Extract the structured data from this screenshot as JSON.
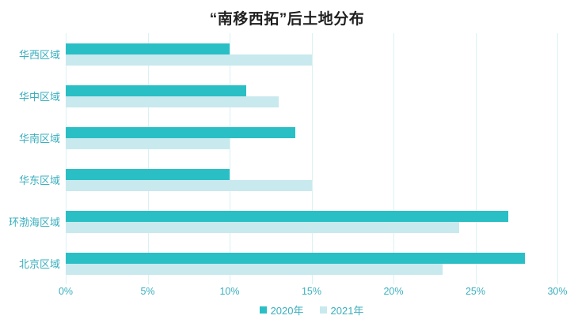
{
  "title": "“南移西拓”后土地分布",
  "colors": {
    "series_2020": "#2abfc5",
    "series_2021": "#c8e9ee",
    "gridline": "#daf2f5",
    "axis_text": "#3aafbe",
    "title_text": "#1f1f1f",
    "background": "#ffffff"
  },
  "chart_data": {
    "type": "bar",
    "orientation": "horizontal",
    "title": "“南移西拓”后土地分布",
    "categories": [
      "华西区域",
      "华中区域",
      "华南区域",
      "华东区域",
      "环渤海区域",
      "北京区域"
    ],
    "series": [
      {
        "name": "2020年",
        "color": "#2abfc5",
        "values": [
          10,
          11,
          14,
          10,
          27,
          28
        ]
      },
      {
        "name": "2021年",
        "color": "#c8e9ee",
        "values": [
          15,
          13,
          10,
          15,
          24,
          23
        ]
      }
    ],
    "value_unit": "%",
    "xlabel": "",
    "ylabel": "",
    "xlim": [
      0,
      30
    ],
    "x_ticks": [
      0,
      5,
      10,
      15,
      20,
      25,
      30
    ],
    "x_tick_labels": [
      "0%",
      "5%",
      "10%",
      "15%",
      "20%",
      "25%",
      "30%"
    ],
    "grid": "vertical",
    "legend_position": "bottom"
  }
}
